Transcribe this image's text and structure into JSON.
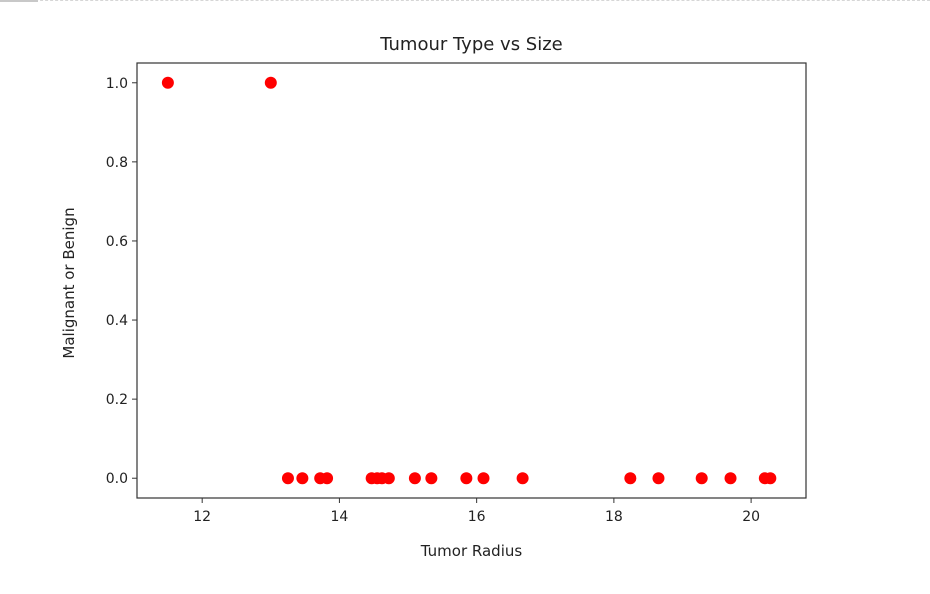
{
  "chart_data": {
    "type": "scatter",
    "title": "Tumour Type vs Size",
    "xlabel": "Tumor Radius",
    "ylabel": "Malignant or Benign",
    "xlim": [
      11.05,
      20.8
    ],
    "ylim": [
      -0.05,
      1.05
    ],
    "xticks": [
      12,
      14,
      16,
      18,
      20
    ],
    "xtick_labels": [
      "12",
      "14",
      "16",
      "18",
      "20"
    ],
    "yticks": [
      0.0,
      0.2,
      0.4,
      0.6,
      0.8,
      1.0
    ],
    "ytick_labels": [
      "0.0",
      "0.2",
      "0.4",
      "0.6",
      "0.8",
      "1.0"
    ],
    "grid": false,
    "marker_color": "#ff0000",
    "points": [
      {
        "x": 11.5,
        "y": 1
      },
      {
        "x": 13.0,
        "y": 1
      },
      {
        "x": 13.25,
        "y": 0
      },
      {
        "x": 13.46,
        "y": 0
      },
      {
        "x": 13.72,
        "y": 0
      },
      {
        "x": 13.82,
        "y": 0
      },
      {
        "x": 14.47,
        "y": 0
      },
      {
        "x": 14.55,
        "y": 0
      },
      {
        "x": 14.62,
        "y": 0
      },
      {
        "x": 14.72,
        "y": 0
      },
      {
        "x": 15.1,
        "y": 0
      },
      {
        "x": 15.34,
        "y": 0
      },
      {
        "x": 15.85,
        "y": 0
      },
      {
        "x": 16.1,
        "y": 0
      },
      {
        "x": 16.67,
        "y": 0
      },
      {
        "x": 18.24,
        "y": 0
      },
      {
        "x": 18.65,
        "y": 0
      },
      {
        "x": 19.28,
        "y": 0
      },
      {
        "x": 19.7,
        "y": 0
      },
      {
        "x": 20.2,
        "y": 0
      },
      {
        "x": 20.28,
        "y": 0
      }
    ]
  }
}
